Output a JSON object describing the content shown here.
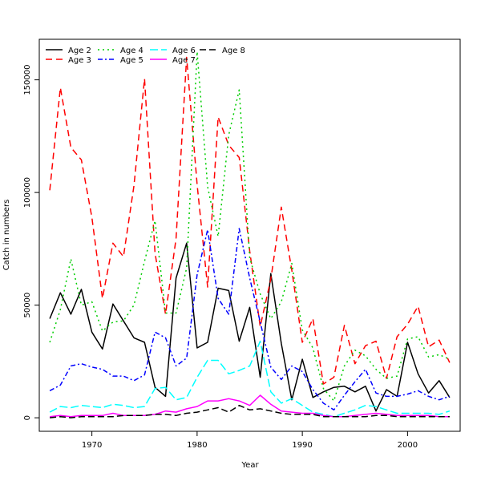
{
  "chart_data": {
    "type": "line",
    "xlabel": "Year",
    "ylabel": "Catch in numbers",
    "xlim": [
      1965,
      2005
    ],
    "ylim": [
      -6000,
      168000
    ],
    "x_ticks": [
      1970,
      1980,
      1990,
      2000
    ],
    "y_ticks": [
      0,
      50000,
      100000,
      150000
    ],
    "grid": false,
    "legend_position": "top-left",
    "x": [
      1966,
      1967,
      1968,
      1969,
      1970,
      1971,
      1972,
      1973,
      1974,
      1975,
      1976,
      1977,
      1978,
      1979,
      1980,
      1981,
      1982,
      1983,
      1984,
      1985,
      1986,
      1987,
      1988,
      1989,
      1990,
      1991,
      1992,
      1993,
      1994,
      1995,
      1996,
      1997,
      1998,
      1999,
      2000,
      2001,
      2002,
      2003,
      2004
    ],
    "series": [
      {
        "name": "Age 2",
        "color": "#000000",
        "dash": "solid",
        "values": [
          44000,
          55500,
          46000,
          57000,
          38000,
          30500,
          50500,
          43000,
          35500,
          33500,
          13500,
          9500,
          62000,
          77500,
          31000,
          33500,
          57500,
          56500,
          34000,
          49000,
          18000,
          64000,
          33000,
          8000,
          26000,
          9000,
          11500,
          13500,
          14000,
          11500,
          14000,
          3000,
          12500,
          9500,
          33500,
          19500,
          11000,
          16500,
          9000
        ]
      },
      {
        "name": "Age 3",
        "color": "#ff0000",
        "dash": "8,5",
        "values": [
          101000,
          146500,
          120000,
          114500,
          89000,
          53000,
          77500,
          71500,
          103000,
          150500,
          73000,
          46000,
          79500,
          160000,
          103500,
          58000,
          133500,
          121000,
          115500,
          74000,
          40500,
          61500,
          93500,
          65500,
          33500,
          44000,
          15000,
          18000,
          41000,
          24000,
          32000,
          34000,
          17500,
          36000,
          41500,
          49500,
          31500,
          34500,
          24500
        ]
      },
      {
        "name": "Age 4",
        "color": "#00cd00",
        "dash": "2,4",
        "values": [
          33500,
          48000,
          70500,
          50000,
          51500,
          38500,
          42500,
          43000,
          50000,
          69500,
          87500,
          46500,
          46500,
          66500,
          162500,
          102500,
          80500,
          125500,
          145500,
          71000,
          55000,
          44000,
          51500,
          68500,
          39000,
          31000,
          13000,
          7500,
          23000,
          30000,
          27500,
          21500,
          17500,
          18500,
          35000,
          36000,
          27000,
          28000,
          26000
        ]
      },
      {
        "name": "Age 5",
        "color": "#0000ff",
        "dash": "6,3,2,3",
        "values": [
          12000,
          14500,
          23000,
          24000,
          22500,
          21500,
          18500,
          18500,
          16500,
          19000,
          38000,
          35500,
          23000,
          26500,
          63500,
          83500,
          53000,
          46000,
          84000,
          62000,
          42500,
          22500,
          17000,
          23000,
          20500,
          12500,
          6500,
          3500,
          10000,
          16000,
          21500,
          11000,
          9500,
          9500,
          10500,
          12000,
          9500,
          8000,
          9500
        ]
      },
      {
        "name": "Age 6",
        "color": "#00ffff",
        "dash": "10,4",
        "values": [
          2500,
          5000,
          4500,
          5500,
          5000,
          4500,
          6000,
          5500,
          4500,
          5000,
          13000,
          13500,
          8000,
          9000,
          18000,
          25500,
          25500,
          19500,
          21000,
          23000,
          34000,
          11500,
          6500,
          8500,
          5500,
          2500,
          1500,
          500,
          2000,
          3500,
          5500,
          5000,
          3500,
          2000,
          2000,
          2000,
          2000,
          1500,
          3000
        ]
      },
      {
        "name": "Age 7",
        "color": "#ff00ff",
        "dash": "solid",
        "values": [
          500,
          1000,
          500,
          1000,
          1000,
          1000,
          2000,
          1000,
          1000,
          1000,
          1500,
          3000,
          2500,
          4000,
          5000,
          7500,
          7500,
          8500,
          7500,
          5500,
          10000,
          6000,
          3000,
          2500,
          2000,
          2000,
          1000,
          500,
          500,
          1000,
          1500,
          2000,
          1500,
          1000,
          1000,
          1000,
          1000,
          500,
          500
        ]
      },
      {
        "name": "Age 8",
        "color": "#000000",
        "dash": "8,4",
        "values": [
          0,
          500,
          0,
          500,
          500,
          500,
          500,
          1000,
          1000,
          1000,
          1500,
          1500,
          1000,
          2000,
          2500,
          3500,
          4500,
          2500,
          5500,
          3500,
          4000,
          3000,
          2000,
          1500,
          1500,
          1500,
          500,
          500,
          500,
          500,
          500,
          1000,
          1000,
          500,
          500,
          500,
          500,
          500,
          500
        ]
      }
    ]
  }
}
